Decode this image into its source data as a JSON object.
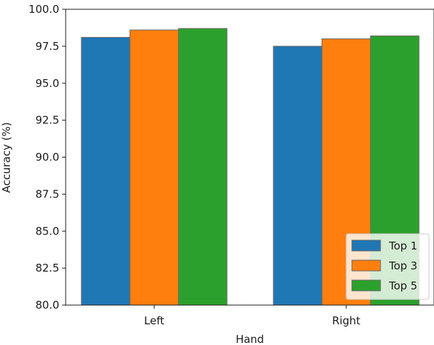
{
  "chart_data": {
    "type": "bar",
    "categories": [
      "Left",
      "Right"
    ],
    "series": [
      {
        "name": "Top 1",
        "values": [
          98.1,
          97.5
        ],
        "color": "#1f77b4"
      },
      {
        "name": "Top 3",
        "values": [
          98.6,
          98.0
        ],
        "color": "#ff7f0e"
      },
      {
        "name": "Top 5",
        "values": [
          98.7,
          98.2
        ],
        "color": "#2ca02c"
      }
    ],
    "xlabel": "Hand",
    "ylabel": "Accuracy (%)",
    "ylim": [
      80.0,
      100.0
    ],
    "yticks": [
      "80.0",
      "82.5",
      "85.0",
      "87.5",
      "90.0",
      "92.5",
      "95.0",
      "97.5",
      "100.0"
    ],
    "grid": false,
    "legend_position": "lower-right"
  }
}
